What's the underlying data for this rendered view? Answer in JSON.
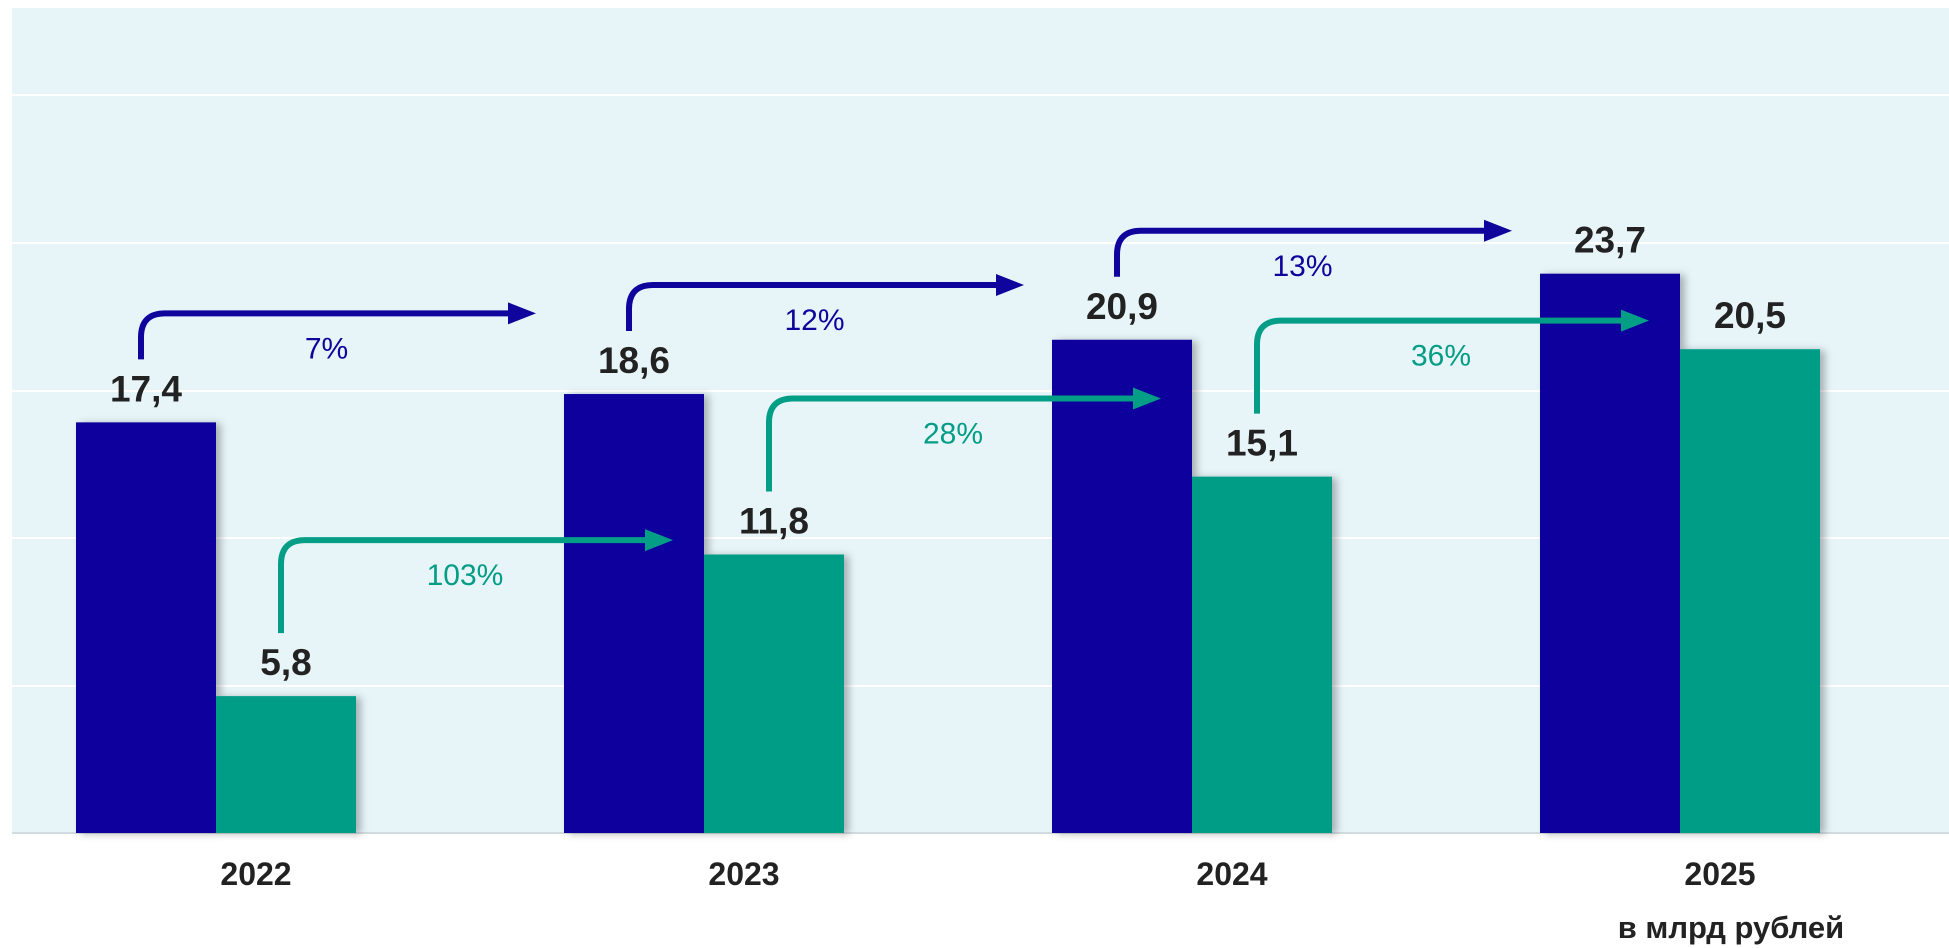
{
  "chart_data": {
    "type": "bar",
    "categories": [
      "2022",
      "2023",
      "2024",
      "2025"
    ],
    "series": [
      {
        "values": [
          17.4,
          18.6,
          20.9,
          23.7
        ],
        "labels": [
          "17,4",
          "18,6",
          "20,9",
          "23,7"
        ],
        "color": "#0f049c"
      },
      {
        "values": [
          5.8,
          11.8,
          15.1,
          20.5
        ],
        "labels": [
          "5,8",
          "11,8",
          "15,1",
          "20,5"
        ],
        "color": "#049d86"
      }
    ],
    "growth_annotations": [
      {
        "series": 0,
        "from": "2022",
        "to": "2023",
        "label": "7%"
      },
      {
        "series": 0,
        "from": "2023",
        "to": "2024",
        "label": "12%"
      },
      {
        "series": 0,
        "from": "2024",
        "to": "2025",
        "label": "13%"
      },
      {
        "series": 1,
        "from": "2022",
        "to": "2023",
        "label": "103%"
      },
      {
        "series": 1,
        "from": "2023",
        "to": "2024",
        "label": "28%"
      },
      {
        "series": 1,
        "from": "2024",
        "to": "2025",
        "label": "36%"
      }
    ],
    "unit_note": "в млрд рублей",
    "ylim": [
      0,
      28
    ],
    "grid": true,
    "background_color": "#e7f5f9",
    "legend": "none"
  }
}
